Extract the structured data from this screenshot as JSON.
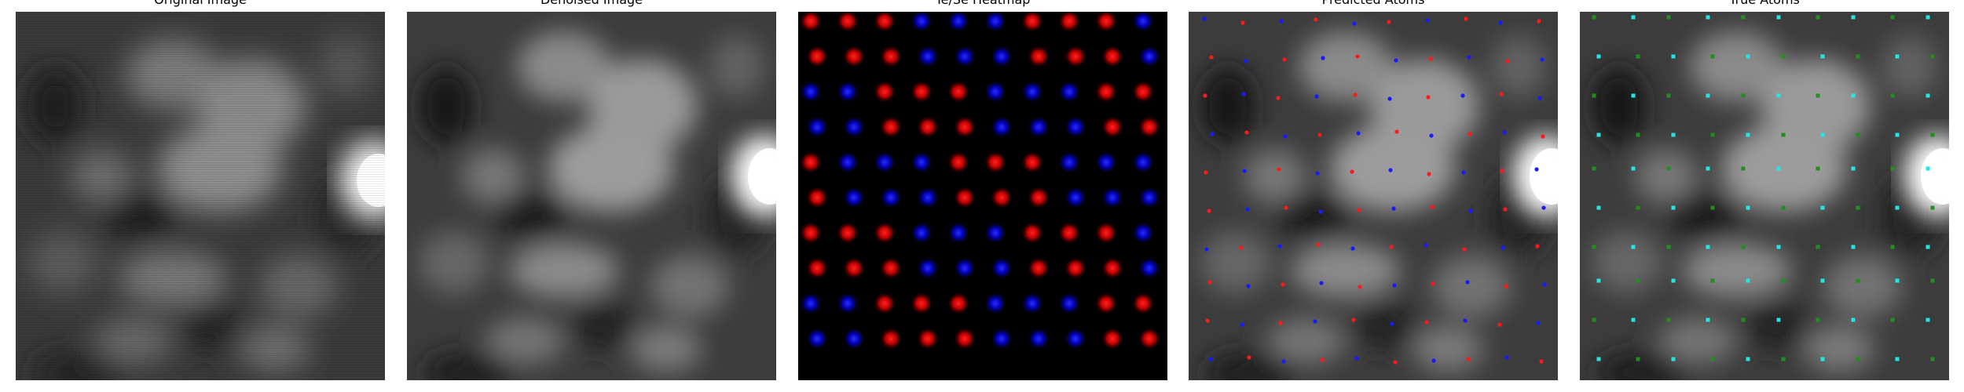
{
  "panels": [
    {
      "title": "Original Image"
    },
    {
      "title": "Denoised Image"
    },
    {
      "title": "Te/Se Heatmap"
    },
    {
      "title": "Predicted Atoms"
    },
    {
      "title": "True Atoms"
    }
  ],
  "colors": {
    "background": "#ffffff",
    "te": "#e00000",
    "se": "#0000e0",
    "predicted_red": "#ff1a1a",
    "predicted_blue": "#1a1aff",
    "true_cyan": "#22e6e6",
    "true_green": "#1f8f1f"
  }
}
